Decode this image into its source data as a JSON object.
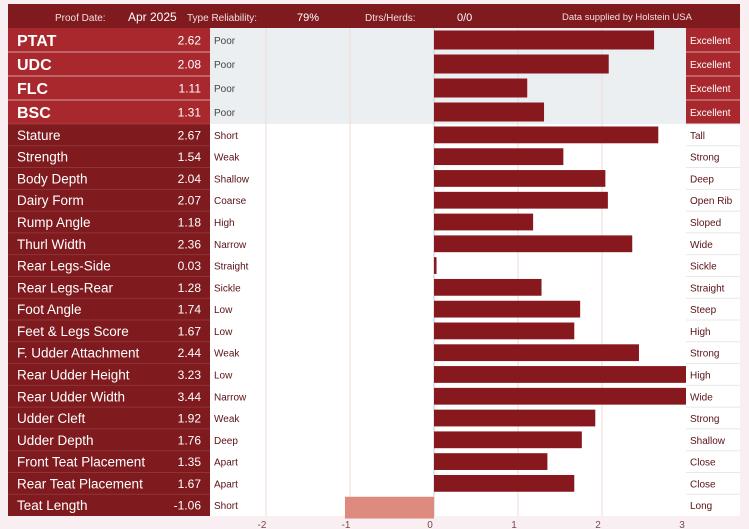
{
  "header": {
    "proof_date_label": "Proof Date:",
    "proof_date_value": "Apr 2025",
    "type_reliability_label": "Type Reliability:",
    "type_reliability_value": "79%",
    "dtrs_herds_label": "Dtrs/Herds:",
    "dtrs_herds_value": "0/0",
    "source": "Data supplied by Holstein USA"
  },
  "colors": {
    "dark_red": "#7f1a1f",
    "mid_red": "#a8282d",
    "bar": "#87181e",
    "negative_bar": "#de8a7e",
    "shaded_bg": "#eceff1",
    "white": "#ffffff"
  },
  "chart_data": {
    "type": "bar",
    "orientation": "horizontal",
    "xlim": [
      -3,
      3
    ],
    "x_ticks": [
      "-2",
      "-1",
      "0",
      "1",
      "2",
      "3"
    ],
    "x_tick_values": [
      -2,
      -1,
      0,
      1,
      2,
      3
    ],
    "rows": [
      {
        "trait": "PTAT",
        "value": 2.62,
        "value_label": "2.62",
        "low": "Poor",
        "high": "Excellent",
        "group": "index"
      },
      {
        "trait": "UDC",
        "value": 2.08,
        "value_label": "2.08",
        "low": "Poor",
        "high": "Excellent",
        "group": "index"
      },
      {
        "trait": "FLC",
        "value": 1.11,
        "value_label": "1.11",
        "low": "Poor",
        "high": "Excellent",
        "group": "index"
      },
      {
        "trait": "BSC",
        "value": 1.31,
        "value_label": "1.31",
        "low": "Poor",
        "high": "Excellent",
        "group": "index"
      },
      {
        "trait": "Stature",
        "value": 2.67,
        "value_label": "2.67",
        "low": "Short",
        "high": "Tall",
        "group": "linear"
      },
      {
        "trait": "Strength",
        "value": 1.54,
        "value_label": "1.54",
        "low": "Weak",
        "high": "Strong",
        "group": "linear"
      },
      {
        "trait": "Body Depth",
        "value": 2.04,
        "value_label": "2.04",
        "low": "Shallow",
        "high": "Deep",
        "group": "linear"
      },
      {
        "trait": "Dairy Form",
        "value": 2.07,
        "value_label": "2.07",
        "low": "Coarse",
        "high": "Open Rib",
        "group": "linear"
      },
      {
        "trait": "Rump Angle",
        "value": 1.18,
        "value_label": "1.18",
        "low": "High",
        "high": "Sloped",
        "group": "linear"
      },
      {
        "trait": "Thurl Width",
        "value": 2.36,
        "value_label": "2.36",
        "low": "Narrow",
        "high": "Wide",
        "group": "linear"
      },
      {
        "trait": "Rear Legs-Side",
        "value": 0.03,
        "value_label": "0.03",
        "low": "Straight",
        "high": "Sickle",
        "group": "linear"
      },
      {
        "trait": "Rear Legs-Rear",
        "value": 1.28,
        "value_label": "1.28",
        "low": "Sickle",
        "high": "Straight",
        "group": "linear"
      },
      {
        "trait": "Foot Angle",
        "value": 1.74,
        "value_label": "1.74",
        "low": "Low",
        "high": "Steep",
        "group": "linear"
      },
      {
        "trait": "Feet & Legs Score",
        "value": 1.67,
        "value_label": "1.67",
        "low": "Low",
        "high": "High",
        "group": "linear"
      },
      {
        "trait": "F. Udder Attachment",
        "value": 2.44,
        "value_label": "2.44",
        "low": "Weak",
        "high": "Strong",
        "group": "linear"
      },
      {
        "trait": "Rear Udder Height",
        "value": 3.23,
        "value_label": "3.23",
        "low": "Low",
        "high": "High",
        "group": "linear"
      },
      {
        "trait": "Rear Udder Width",
        "value": 3.44,
        "value_label": "3.44",
        "low": "Narrow",
        "high": "Wide",
        "group": "linear"
      },
      {
        "trait": "Udder Cleft",
        "value": 1.92,
        "value_label": "1.92",
        "low": "Weak",
        "high": "Strong",
        "group": "linear"
      },
      {
        "trait": "Udder Depth",
        "value": 1.76,
        "value_label": "1.76",
        "low": "Deep",
        "high": "Shallow",
        "group": "linear"
      },
      {
        "trait": "Front Teat Placement",
        "value": 1.35,
        "value_label": "1.35",
        "low": "Apart",
        "high": "Close",
        "group": "linear"
      },
      {
        "trait": "Rear Teat Placement",
        "value": 1.67,
        "value_label": "1.67",
        "low": "Apart",
        "high": "Close",
        "group": "linear"
      },
      {
        "trait": "Teat Length",
        "value": -1.06,
        "value_label": "-1.06",
        "low": "Short",
        "high": "Long",
        "group": "linear"
      }
    ]
  }
}
